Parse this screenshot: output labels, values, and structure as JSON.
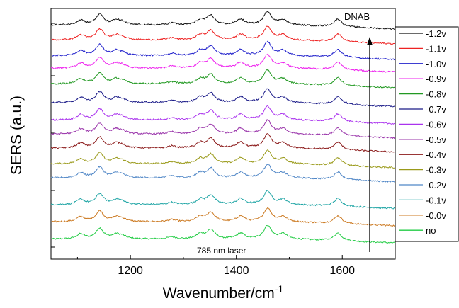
{
  "chart_data": {
    "type": "line",
    "xlabel_base": "Wavenumber/cm",
    "xlabel_sup": "-1",
    "ylabel": "SERS (a.u.)",
    "xlim": [
      1050,
      1700
    ],
    "xticks": [
      "1200",
      "1400",
      "1600"
    ],
    "ylim": [
      0,
      14
    ],
    "grid": false,
    "legend_placement": "right, outside plot",
    "annotations": {
      "top_label": "DNAB",
      "bottom_label": "785 nm laser",
      "arrow": "vertical arrow pointing up near x = 1660"
    },
    "peaks": [
      {
        "x": 1106,
        "height": 0.35
      },
      {
        "x": 1142,
        "height": 0.75
      },
      {
        "x": 1173,
        "height": 0.3
      },
      {
        "x": 1185,
        "height": 0.18
      },
      {
        "x": 1278,
        "height": 0.15
      },
      {
        "x": 1332,
        "height": 0.35
      },
      {
        "x": 1352,
        "height": 0.65
      },
      {
        "x": 1408,
        "height": 0.4
      },
      {
        "x": 1459,
        "height": 0.95
      },
      {
        "x": 1488,
        "height": 0.35
      },
      {
        "x": 1592,
        "height": 0.55
      }
    ],
    "series": [
      {
        "name": "no",
        "color": "#22cc44",
        "offset": 0.2
      },
      {
        "name": "-0.0v",
        "color": "#cc7a22",
        "offset": 1.3
      },
      {
        "name": "-0.1v",
        "color": "#1fa5a5",
        "offset": 2.4
      },
      {
        "name": "-0.2v",
        "color": "#4f86c6",
        "offset": 4.1
      },
      {
        "name": "-0.3v",
        "color": "#9a9a1a",
        "offset": 5.0
      },
      {
        "name": "-0.4v",
        "color": "#8b1a1a",
        "offset": 6.0
      },
      {
        "name": "-0.5v",
        "color": "#9933aa",
        "offset": 6.9
      },
      {
        "name": "-0.6v",
        "color": "#aa33ee",
        "offset": 7.8
      },
      {
        "name": "-0.7v",
        "color": "#1a1a88",
        "offset": 8.9
      },
      {
        "name": "-0.8v",
        "color": "#229922",
        "offset": 10.1
      },
      {
        "name": "-0.9v",
        "color": "#ee22ee",
        "offset": 11.1
      },
      {
        "name": "-1.0v",
        "color": "#2222cc",
        "offset": 11.9
      },
      {
        "name": "-1.1v",
        "color": "#ee2222",
        "offset": 12.9
      },
      {
        "name": "-1.2v",
        "color": "#111111",
        "offset": 13.85
      }
    ],
    "legend_order": [
      "-1.2v",
      "-1.1v",
      "-1.0v",
      "-0.9v",
      "-0.8v",
      "-0.7v",
      "-0.6v",
      "-0.5v",
      "-0.4v",
      "-0.3v",
      "-0.2v",
      "-0.1v",
      "-0.0v",
      "no"
    ]
  }
}
